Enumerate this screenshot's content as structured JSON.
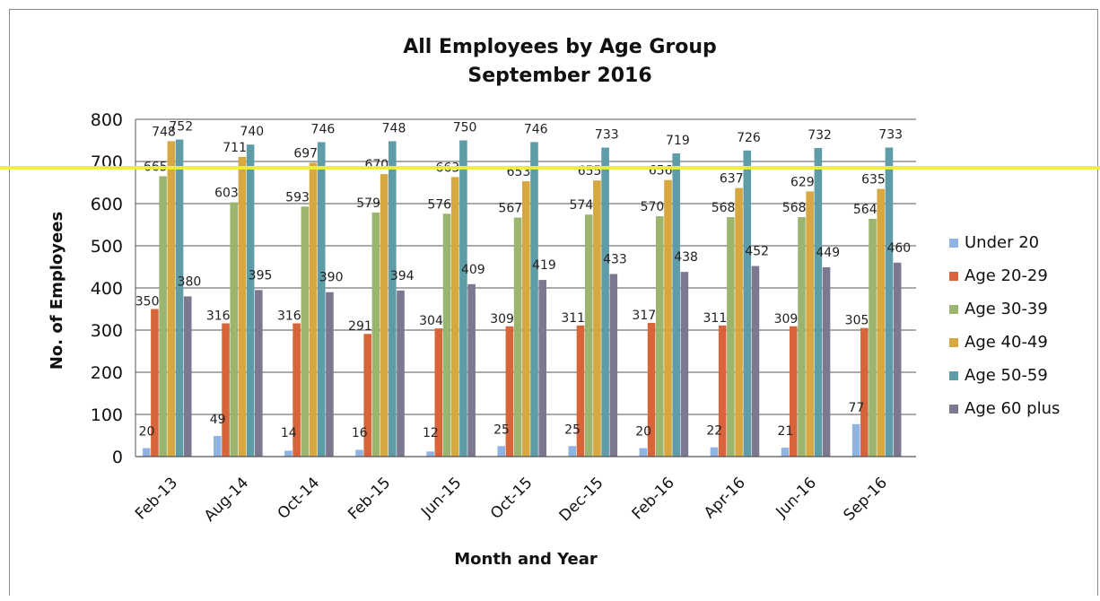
{
  "chart_data": {
    "type": "bar",
    "title": "All Employees by Age Group",
    "subtitle": "September 2016",
    "xlabel": "Month and Year",
    "ylabel": "No. of Employees",
    "ylim": [
      0,
      800
    ],
    "yticks": [
      "0",
      "100",
      "200",
      "300",
      "400",
      "500",
      "600",
      "700",
      "800"
    ],
    "grid": true,
    "legend_position": "right",
    "categories": [
      "Feb-13",
      "Aug-14",
      "Oct-14",
      "Feb-15",
      "Jun-15",
      "Oct-15",
      "Dec-15",
      "Feb-16",
      "Apr-16",
      "Jun-16",
      "Sep-16"
    ],
    "series": [
      {
        "name": "Under 20",
        "color": "#8fb4e3",
        "values": [
          20,
          49,
          14,
          16,
          12,
          25,
          25,
          20,
          22,
          21,
          77
        ]
      },
      {
        "name": "Age 20-29",
        "color": "#d8643a",
        "values": [
          350,
          316,
          316,
          291,
          304,
          309,
          311,
          317,
          311,
          309,
          305
        ]
      },
      {
        "name": "Age 30-39",
        "color": "#9cb56e",
        "values": [
          665,
          603,
          593,
          579,
          576,
          567,
          574,
          570,
          568,
          568,
          564
        ]
      },
      {
        "name": "Age 40-49",
        "color": "#d6a83f",
        "values": [
          748,
          711,
          697,
          670,
          663,
          653,
          655,
          656,
          637,
          629,
          635
        ]
      },
      {
        "name": "Age 50-59",
        "color": "#5e9ca8",
        "values": [
          752,
          740,
          746,
          748,
          750,
          746,
          733,
          719,
          726,
          732,
          733
        ]
      },
      {
        "name": "Age 60 plus",
        "color": "#7d7890",
        "values": [
          380,
          395,
          390,
          394,
          409,
          419,
          433,
          438,
          452,
          449,
          460
        ]
      }
    ]
  }
}
